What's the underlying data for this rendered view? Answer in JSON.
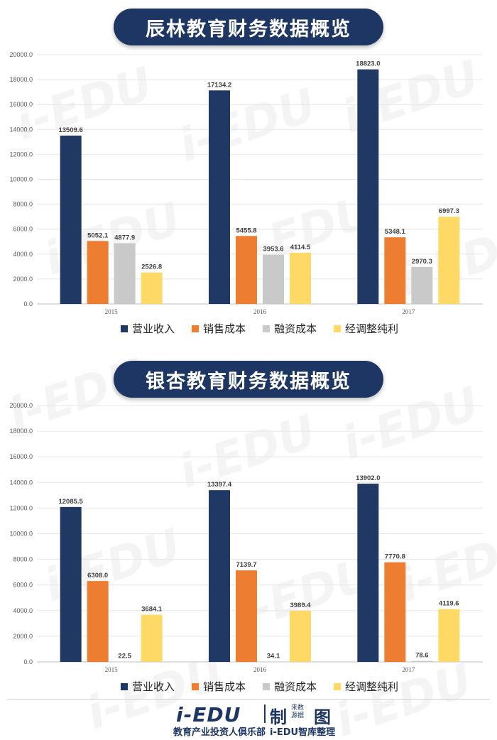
{
  "watermark": "i-EDU",
  "chart_data": [
    {
      "type": "bar",
      "title": "辰林教育财务数据概览",
      "categories": [
        "2015",
        "2016",
        "2017"
      ],
      "series": [
        {
          "name": "营业收入",
          "color": "#1f3864",
          "values": [
            13509.6,
            17134.2,
            18823.0
          ]
        },
        {
          "name": "销售成本",
          "color": "#ed7d31",
          "values": [
            5052.1,
            5455.8,
            5348.1
          ]
        },
        {
          "name": "融资成本",
          "color": "#c9c9c9",
          "values": [
            4877.9,
            3953.6,
            2970.3
          ]
        },
        {
          "name": "经调整纯利",
          "color": "#ffd966",
          "values": [
            2526.8,
            4114.5,
            6997.3
          ]
        }
      ],
      "ylim": [
        0,
        20000
      ],
      "yticks": [
        "0.0",
        "2000.0",
        "4000.0",
        "6000.0",
        "8000.0",
        "10000.0",
        "12000.0",
        "14000.0",
        "16000.0",
        "18000.0",
        "20000.0"
      ],
      "grid": true,
      "legend": "bottom"
    },
    {
      "type": "bar",
      "title": "银杏教育财务数据概览",
      "categories": [
        "2015",
        "2016",
        "2017"
      ],
      "series": [
        {
          "name": "营业收入",
          "color": "#1f3864",
          "values": [
            12085.5,
            13397.4,
            13902.0
          ]
        },
        {
          "name": "销售成本",
          "color": "#ed7d31",
          "values": [
            6308.0,
            7139.7,
            7770.8
          ]
        },
        {
          "name": "融资成本",
          "color": "#c9c9c9",
          "values": [
            22.5,
            34.1,
            78.6
          ]
        },
        {
          "name": "经调整纯利",
          "color": "#ffd966",
          "values": [
            3684.1,
            3989.4,
            4119.6
          ]
        }
      ],
      "ylim": [
        0,
        20000
      ],
      "yticks": [
        "0.0",
        "2000.0",
        "4000.0",
        "6000.0",
        "8000.0",
        "10000.0",
        "12000.0",
        "14000.0",
        "16000.0",
        "18000.0",
        "20000.0"
      ],
      "grid": true,
      "legend": "bottom"
    }
  ],
  "footer": {
    "logo": "i-EDU",
    "logo_char1": "制",
    "logo_small": "来数源据",
    "logo_char2": "图",
    "subtitle_left": "教育产业投资人俱乐部",
    "subtitle_right": "i-EDU智库整理"
  }
}
